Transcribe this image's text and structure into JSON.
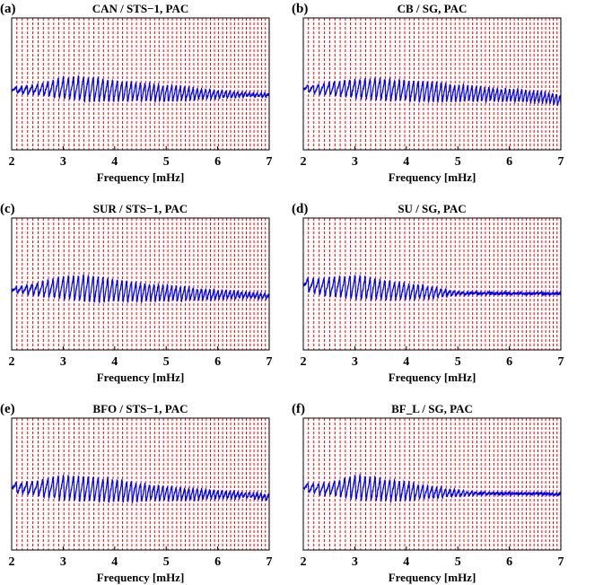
{
  "chart_data": [
    {
      "type": "line",
      "panel_label": "(a)",
      "title": "CAN / STS−1, PAC",
      "xlabel": "Frequency [mHz]",
      "xlim": [
        2,
        7
      ],
      "xticks": [
        "2",
        "3",
        "4",
        "5",
        "6",
        "7"
      ],
      "series": [
        {
          "color": "#0000ff",
          "envelope_x": [
            2,
            2.5,
            3,
            3.5,
            4,
            4.5,
            5,
            5.5,
            6,
            6.5,
            7
          ],
          "envelope_amplitude": [
            0.1,
            0.25,
            0.5,
            0.6,
            0.5,
            0.45,
            0.4,
            0.3,
            0.2,
            0.12,
            0.08
          ]
        }
      ]
    },
    {
      "type": "line",
      "panel_label": "(b)",
      "title": "CB / SG, PAC",
      "xlabel": "Frequency [mHz]",
      "xlim": [
        2,
        7
      ],
      "xticks": [
        "2",
        "3",
        "4",
        "5",
        "6",
        "7"
      ],
      "series": [
        {
          "color": "#0000ff",
          "envelope_x": [
            2,
            2.5,
            3,
            3.5,
            4,
            4.5,
            5,
            5.5,
            6,
            6.5,
            7
          ],
          "envelope_amplitude": [
            0.15,
            0.3,
            0.45,
            0.55,
            0.5,
            0.5,
            0.4,
            0.35,
            0.3,
            0.3,
            0.25
          ]
        }
      ]
    },
    {
      "type": "line",
      "panel_label": "(c)",
      "title": "SUR / STS−1, PAC",
      "xlabel": "Frequency [mHz]",
      "xlim": [
        2,
        7
      ],
      "xticks": [
        "2",
        "3",
        "4",
        "5",
        "6",
        "7"
      ],
      "series": [
        {
          "color": "#0000ff",
          "envelope_x": [
            2,
            2.5,
            3,
            3.5,
            4,
            4.5,
            5,
            5.5,
            6,
            6.5,
            7
          ],
          "envelope_amplitude": [
            0.1,
            0.3,
            0.55,
            0.65,
            0.55,
            0.45,
            0.4,
            0.3,
            0.25,
            0.15,
            0.12
          ]
        }
      ]
    },
    {
      "type": "line",
      "panel_label": "(d)",
      "title": "SU / SG, PAC",
      "xlabel": "Frequency [mHz]",
      "xlim": [
        2,
        7
      ],
      "xticks": [
        "2",
        "3",
        "4",
        "5",
        "6",
        "7"
      ],
      "series": [
        {
          "color": "#0000ff",
          "envelope_x": [
            2,
            2.5,
            3,
            3.5,
            4,
            4.5,
            5,
            5.5,
            6,
            6.5,
            7
          ],
          "envelope_amplitude": [
            0.3,
            0.45,
            0.6,
            0.5,
            0.4,
            0.3,
            0.07,
            0.05,
            0.03,
            0.02,
            0.02
          ]
        }
      ]
    },
    {
      "type": "line",
      "panel_label": "(e)",
      "title": "BFO / STS−1, PAC",
      "xlabel": "Frequency [mHz]",
      "xlim": [
        2,
        7
      ],
      "xticks": [
        "2",
        "3",
        "4",
        "5",
        "6",
        "7"
      ],
      "series": [
        {
          "color": "#0000ff",
          "envelope_x": [
            2,
            2.5,
            3,
            3.5,
            4,
            4.5,
            5,
            5.5,
            6,
            6.5,
            7
          ],
          "envelope_amplitude": [
            0.2,
            0.35,
            0.6,
            0.6,
            0.55,
            0.45,
            0.35,
            0.3,
            0.2,
            0.15,
            0.15
          ]
        }
      ]
    },
    {
      "type": "line",
      "panel_label": "(f)",
      "title": "BF_L / SG, PAC",
      "xlabel": "Frequency [mHz]",
      "xlim": [
        2,
        7
      ],
      "xticks": [
        "2",
        "3",
        "4",
        "5",
        "6",
        "7"
      ],
      "series": [
        {
          "color": "#0000ff",
          "envelope_x": [
            2,
            2.5,
            3,
            3.5,
            4,
            4.5,
            5,
            5.5,
            6,
            6.5,
            7
          ],
          "envelope_amplitude": [
            0.2,
            0.3,
            0.6,
            0.55,
            0.45,
            0.3,
            0.15,
            0.05,
            0.03,
            0.03,
            0.03
          ]
        }
      ]
    }
  ],
  "mode_lines": {
    "color": "#ff0000",
    "style": "dashed",
    "first_mHz": 2.1,
    "spacing_start_mHz": 0.105,
    "spacing_end_mHz": 0.072
  }
}
